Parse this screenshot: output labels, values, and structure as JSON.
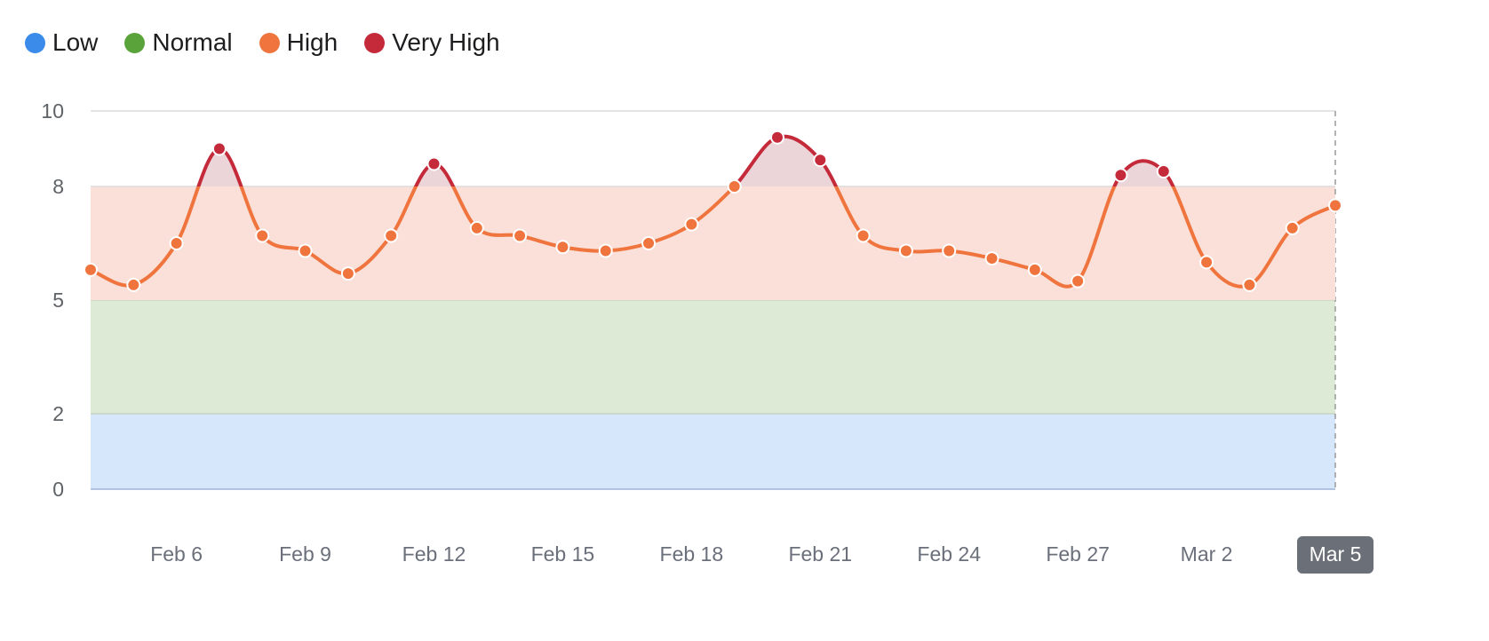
{
  "chart_data": {
    "type": "line",
    "legend_position": "top-left",
    "grid": true,
    "ylim": [
      0,
      10
    ],
    "y_ticks": [
      "0",
      "2",
      "5",
      "8",
      "10"
    ],
    "x_ticks": [
      "Feb 6",
      "Feb 9",
      "Feb 12",
      "Feb 15",
      "Feb 18",
      "Feb 21",
      "Feb 24",
      "Feb 27",
      "Mar 2",
      "Mar 5"
    ],
    "highlighted_x_tick": "Mar 5",
    "bands": [
      {
        "name": "Low",
        "range": [
          0,
          2
        ],
        "color": "#3b8beb",
        "fill": "#d6e6fb"
      },
      {
        "name": "Normal",
        "range": [
          2,
          5
        ],
        "color": "#5aa33a",
        "fill": "#ddebd6"
      },
      {
        "name": "High",
        "range": [
          5,
          8
        ],
        "color": "#f0743e",
        "fill": "#fae0d8"
      },
      {
        "name": "Very High",
        "range": [
          8,
          10
        ],
        "color": "#c42a3a",
        "fill": "#ecd5d8"
      }
    ],
    "series": [
      {
        "x": [
          "Feb 4",
          "Feb 5",
          "Feb 6",
          "Feb 7",
          "Feb 8",
          "Feb 9",
          "Feb 10",
          "Feb 11",
          "Feb 12",
          "Feb 13",
          "Feb 14",
          "Feb 15",
          "Feb 16",
          "Feb 17",
          "Feb 18",
          "Feb 19",
          "Feb 20",
          "Feb 21",
          "Feb 22",
          "Feb 23",
          "Feb 24",
          "Feb 25",
          "Feb 26",
          "Feb 27",
          "Feb 28",
          "Mar 1",
          "Mar 2",
          "Mar 3",
          "Mar 4",
          "Mar 5"
        ],
        "values": [
          5.8,
          5.4,
          6.5,
          9.0,
          6.7,
          6.3,
          5.7,
          6.7,
          8.6,
          6.9,
          6.7,
          6.4,
          6.3,
          6.5,
          7.0,
          8.0,
          9.3,
          8.7,
          6.7,
          6.3,
          6.3,
          6.1,
          5.8,
          5.5,
          8.3,
          8.4,
          6.0,
          5.4,
          6.9,
          7.5
        ]
      }
    ]
  }
}
